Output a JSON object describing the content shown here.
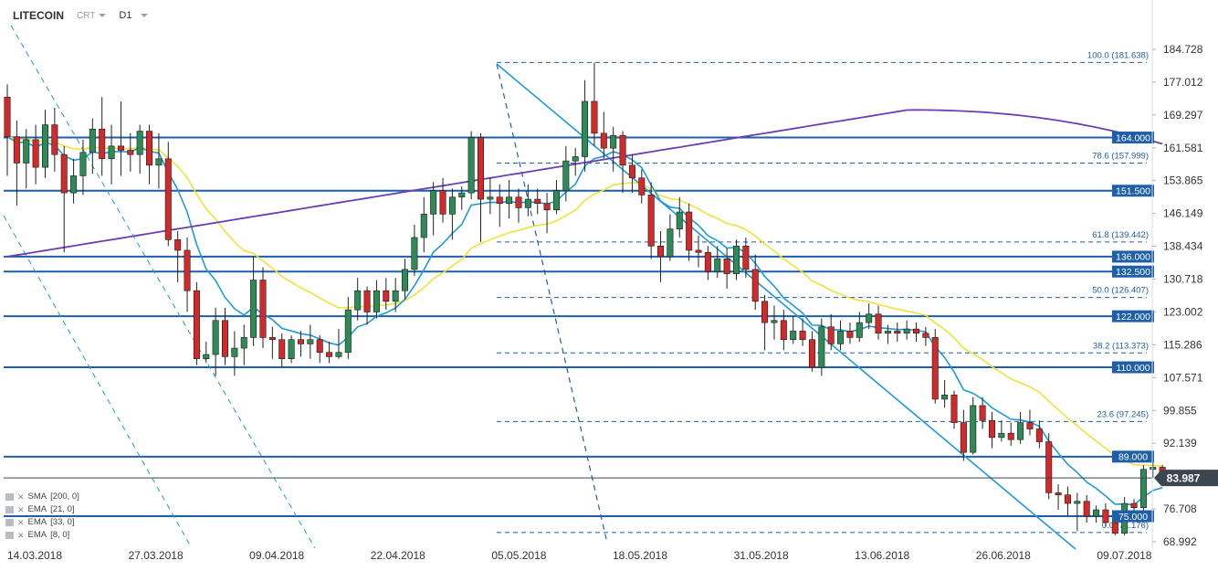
{
  "header": {
    "symbol": "LITECOIN",
    "instrument_type": "CRT",
    "timeframe": "D1"
  },
  "indicators": [
    {
      "name": "SMA",
      "params": "[200, 0]",
      "color": "#6a3fb5"
    },
    {
      "name": "EMA",
      "params": "[21, 0]",
      "color": "#f2e030"
    },
    {
      "name": "EMA",
      "params": "[33, 0]",
      "color": "#f2e030"
    },
    {
      "name": "EMA",
      "params": "[8, 0]",
      "color": "#1e9bd7"
    }
  ],
  "colors": {
    "bull": "#2e8b57",
    "bear": "#d22a2a",
    "level_line": "#1f5fa8",
    "fib_line": "#1f5fa8",
    "trend_line": "#1e9bd7",
    "sma200": "#6a3fb5",
    "ema_yellow": "#f2e030",
    "ema_blue": "#1e9bd7",
    "label_bg": "#1f5fa8",
    "price_badge_bg": "#3c4650"
  },
  "chart_data": {
    "type": "candlestick",
    "timeframe": "D1",
    "ylim": [
      68.992,
      184.728
    ],
    "y_ticks": [
      "184.728",
      "177.012",
      "169.297",
      "161.581",
      "153.865",
      "146.149",
      "138.434",
      "130.718",
      "123.002",
      "115.286",
      "107.571",
      "99.855",
      "92.139",
      "76.708",
      "68.992"
    ],
    "x_ticks": [
      "14.03.2018",
      "27.03.2018",
      "09.04.2018",
      "22.04.2018",
      "05.05.2018",
      "18.05.2018",
      "31.05.2018",
      "13.06.2018",
      "26.06.2018",
      "09.07.2018"
    ],
    "current_price": "83.987",
    "horizontal_levels": [
      "164.000",
      "151.500",
      "136.000",
      "132.500",
      "122.000",
      "110.000",
      "89.000",
      "75.000"
    ],
    "fibonacci_levels": [
      {
        "label": "100.0 (181.638)",
        "value": 181.638
      },
      {
        "label": "78.6 (157.999)",
        "value": 157.999
      },
      {
        "label": "61.8 (139.442)",
        "value": 139.442
      },
      {
        "label": "50.0 (126.407)",
        "value": 126.407
      },
      {
        "label": "38.2 (113.373)",
        "value": 113.373
      },
      {
        "label": "23.6 (97.245)",
        "value": 97.245
      },
      {
        "label": "0.0 (71.176)",
        "value": 71.176
      }
    ],
    "candles": [
      [
        173.5,
        164.2,
        176.5,
        155.0
      ],
      [
        164.2,
        158.0,
        168.0,
        148.0
      ],
      [
        158.0,
        163.5,
        166.0,
        152.0
      ],
      [
        163.5,
        157.0,
        167.0,
        153.0
      ],
      [
        157.0,
        167.0,
        170.5,
        154.5
      ],
      [
        167.0,
        160.0,
        171.0,
        156.0
      ],
      [
        160.0,
        151.0,
        162.0,
        137.0
      ],
      [
        151.0,
        155.0,
        159.0,
        148.5
      ],
      [
        155.0,
        160.5,
        163.5,
        150.5
      ],
      [
        160.5,
        166.0,
        168.5,
        155.5
      ],
      [
        166.0,
        159.0,
        173.5,
        155.0
      ],
      [
        159.0,
        162.0,
        167.0,
        153.0
      ],
      [
        162.0,
        161.0,
        172.5,
        155.0
      ],
      [
        161.0,
        160.0,
        165.0,
        156.0
      ],
      [
        160.0,
        165.5,
        167.0,
        155.5
      ],
      [
        165.5,
        157.5,
        167.0,
        153.0
      ],
      [
        157.5,
        159.0,
        165.0,
        152.0
      ],
      [
        159.0,
        140.0,
        163.0,
        138.5
      ],
      [
        140.0,
        137.5,
        142.0,
        130.0
      ],
      [
        137.5,
        128.0,
        140.5,
        123.0
      ],
      [
        128.0,
        112.0,
        130.0,
        110.5
      ],
      [
        112.0,
        113.0,
        116.0,
        111.0
      ],
      [
        113.0,
        121.0,
        124.0,
        108.0
      ],
      [
        121.0,
        112.5,
        124.0,
        110.5
      ],
      [
        112.5,
        114.5,
        118.5,
        108.0
      ],
      [
        114.5,
        117.0,
        120.0,
        110.5
      ],
      [
        117.0,
        130.5,
        136.0,
        115.0
      ],
      [
        130.5,
        117.0,
        133.5,
        114.5
      ],
      [
        117.0,
        116.5,
        119.5,
        112.0
      ],
      [
        116.5,
        112.0,
        118.0,
        110.0
      ],
      [
        112.0,
        116.5,
        117.5,
        111.0
      ],
      [
        116.5,
        115.5,
        118.5,
        112.5
      ],
      [
        115.5,
        116.5,
        120.0,
        112.0
      ],
      [
        116.5,
        113.5,
        117.5,
        111.0
      ],
      [
        113.5,
        112.5,
        116.0,
        111.0
      ],
      [
        112.5,
        113.5,
        119.0,
        112.0
      ],
      [
        113.5,
        123.5,
        126.5,
        112.0
      ],
      [
        123.5,
        128.0,
        131.0,
        121.0
      ],
      [
        128.0,
        123.0,
        129.0,
        120.0
      ],
      [
        123.0,
        128.0,
        130.5,
        121.5
      ],
      [
        128.0,
        125.5,
        131.0,
        123.5
      ],
      [
        125.5,
        128.0,
        131.0,
        123.0
      ],
      [
        128.0,
        133.0,
        135.5,
        126.0
      ],
      [
        133.0,
        140.5,
        143.5,
        131.5
      ],
      [
        140.5,
        146.0,
        150.0,
        137.0
      ],
      [
        146.0,
        151.5,
        153.5,
        141.0
      ],
      [
        151.5,
        146.0,
        154.5,
        144.0
      ],
      [
        146.0,
        150.0,
        152.0,
        140.0
      ],
      [
        150.0,
        151.0,
        152.5,
        147.0
      ],
      [
        151.0,
        164.0,
        165.5,
        149.5
      ],
      [
        164.0,
        149.5,
        165.0,
        139.5
      ],
      [
        149.5,
        150.0,
        154.5,
        146.0
      ],
      [
        150.0,
        148.5,
        153.0,
        143.0
      ],
      [
        148.5,
        150.0,
        154.0,
        145.0
      ],
      [
        150.0,
        147.5,
        152.0,
        144.0
      ],
      [
        147.5,
        149.5,
        153.0,
        145.5
      ],
      [
        149.5,
        148.5,
        152.0,
        146.0
      ],
      [
        148.5,
        147.0,
        151.0,
        141.5
      ],
      [
        147.0,
        151.5,
        154.0,
        146.0
      ],
      [
        151.5,
        158.5,
        162.0,
        149.0
      ],
      [
        158.5,
        159.5,
        161.5,
        155.0
      ],
      [
        159.5,
        172.5,
        177.5,
        156.0
      ],
      [
        172.5,
        165.0,
        181.6,
        162.0
      ],
      [
        165.0,
        161.5,
        170.0,
        159.0
      ],
      [
        161.5,
        164.5,
        166.5,
        156.0
      ],
      [
        164.5,
        157.5,
        165.5,
        151.0
      ],
      [
        157.5,
        154.5,
        160.0,
        151.0
      ],
      [
        154.5,
        150.5,
        156.5,
        148.5
      ],
      [
        150.5,
        138.5,
        153.5,
        135.5
      ],
      [
        138.5,
        136.0,
        142.0,
        130.0
      ],
      [
        136.0,
        142.5,
        146.0,
        135.0
      ],
      [
        142.5,
        146.5,
        150.0,
        140.5
      ],
      [
        146.5,
        137.5,
        148.5,
        135.0
      ],
      [
        137.5,
        137.0,
        141.0,
        133.5
      ],
      [
        137.0,
        132.5,
        138.5,
        130.5
      ],
      [
        132.5,
        135.5,
        138.5,
        131.0
      ],
      [
        135.5,
        132.0,
        138.0,
        128.5
      ],
      [
        132.0,
        138.5,
        140.0,
        130.5
      ],
      [
        138.5,
        133.0,
        140.5,
        131.0
      ],
      [
        133.0,
        125.5,
        136.5,
        123.5
      ],
      [
        125.5,
        120.5,
        127.0,
        114.0
      ],
      [
        120.5,
        121.0,
        124.5,
        116.5
      ],
      [
        121.0,
        116.5,
        123.5,
        114.0
      ],
      [
        116.5,
        118.5,
        122.0,
        115.5
      ],
      [
        118.5,
        116.5,
        121.5,
        115.0
      ],
      [
        116.5,
        110.0,
        118.5,
        109.0
      ],
      [
        110.0,
        119.5,
        121.5,
        108.0
      ],
      [
        119.5,
        115.5,
        122.5,
        114.0
      ],
      [
        115.5,
        118.5,
        121.0,
        114.0
      ],
      [
        118.5,
        117.0,
        120.5,
        115.5
      ],
      [
        117.0,
        120.5,
        123.0,
        116.0
      ],
      [
        120.5,
        122.5,
        125.0,
        119.0
      ],
      [
        122.5,
        118.0,
        124.5,
        116.5
      ],
      [
        118.0,
        118.5,
        120.0,
        115.5
      ],
      [
        118.5,
        118.0,
        120.5,
        116.0
      ],
      [
        118.0,
        119.0,
        121.0,
        116.5
      ],
      [
        119.0,
        118.0,
        120.5,
        116.0
      ],
      [
        118.0,
        117.0,
        119.5,
        115.0
      ],
      [
        117.0,
        102.5,
        119.0,
        101.5
      ],
      [
        102.5,
        103.5,
        107.0,
        100.5
      ],
      [
        103.5,
        97.0,
        104.5,
        95.5
      ],
      [
        97.0,
        90.0,
        100.0,
        88.0
      ],
      [
        90.0,
        101.0,
        103.0,
        89.5
      ],
      [
        101.0,
        97.5,
        103.0,
        95.5
      ],
      [
        97.5,
        93.5,
        99.5,
        91.0
      ],
      [
        93.5,
        94.5,
        97.5,
        92.5
      ],
      [
        94.5,
        93.0,
        97.0,
        91.5
      ],
      [
        93.0,
        97.0,
        99.5,
        92.0
      ],
      [
        97.0,
        95.5,
        100.0,
        94.0
      ],
      [
        95.5,
        92.5,
        97.5,
        91.0
      ],
      [
        92.5,
        80.5,
        94.5,
        79.0
      ],
      [
        80.5,
        80.0,
        82.5,
        76.5
      ],
      [
        80.0,
        78.0,
        82.0,
        75.0
      ],
      [
        78.0,
        78.5,
        80.5,
        71.5
      ],
      [
        78.5,
        75.0,
        80.0,
        73.5
      ],
      [
        75.0,
        76.5,
        77.5,
        73.5
      ],
      [
        76.5,
        73.5,
        78.0,
        72.5
      ],
      [
        73.5,
        71.0,
        75.0,
        70.5
      ],
      [
        71.0,
        78.0,
        79.5,
        70.5
      ],
      [
        78.0,
        77.0,
        79.0,
        75.5
      ],
      [
        77.0,
        86.0,
        87.0,
        76.0
      ],
      [
        86.0,
        86.5,
        88.5,
        84.0
      ],
      [
        86.5,
        84.0,
        87.0,
        83.0
      ]
    ]
  }
}
